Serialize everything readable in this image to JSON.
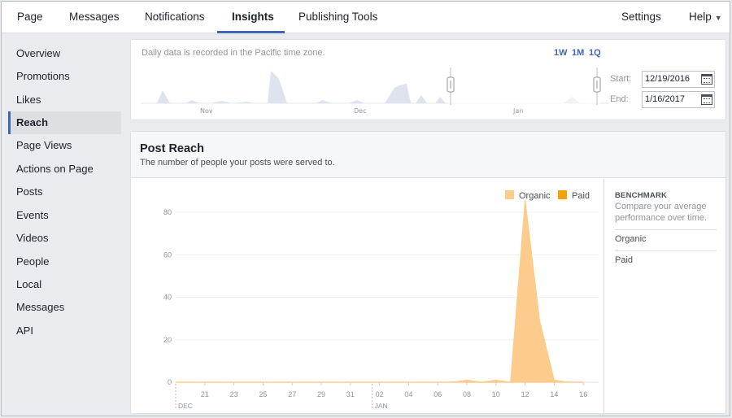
{
  "topnav": {
    "tabs": [
      {
        "label": "Page"
      },
      {
        "label": "Messages"
      },
      {
        "label": "Notifications"
      },
      {
        "label": "Insights",
        "active": true
      },
      {
        "label": "Publishing Tools"
      }
    ],
    "settings": "Settings",
    "help": "Help"
  },
  "sidebar": {
    "items": [
      "Overview",
      "Promotions",
      "Likes",
      "Reach",
      "Page Views",
      "Actions on Page",
      "Posts",
      "Events",
      "Videos",
      "People",
      "Local",
      "Messages",
      "API"
    ],
    "active": "Reach"
  },
  "timeline": {
    "note": "Daily data is recorded in the Pacific time zone.",
    "ranges": [
      "1W",
      "1M",
      "1Q"
    ],
    "ticks": [
      "Nov",
      "Dec",
      "Jan"
    ],
    "start_label": "Start:",
    "end_label": "End:",
    "start_value": "12/19/2016",
    "end_value": "1/16/2017"
  },
  "post_reach": {
    "title": "Post Reach",
    "subtitle": "The number of people your posts were served to."
  },
  "chart_data": {
    "type": "area",
    "legend": [
      "Organic",
      "Paid"
    ],
    "legend_position": "top-right",
    "colors": {
      "organic": "#fdcb8b",
      "paid": "#f2a20a"
    },
    "y_ticks": [
      "0",
      "20",
      "40",
      "60",
      "80"
    ],
    "ylim": [
      0,
      90
    ],
    "x_tick_labels": [
      "21",
      "23",
      "25",
      "27",
      "29",
      "31",
      "02",
      "04",
      "06",
      "08",
      "10",
      "12",
      "14",
      "16"
    ],
    "month_labels": [
      "DEC",
      "JAN"
    ],
    "series": [
      {
        "name": "Organic",
        "points": [
          [
            "2016-12-19",
            0
          ],
          [
            "2016-12-20",
            0
          ],
          [
            "2016-12-21",
            0
          ],
          [
            "2016-12-22",
            0
          ],
          [
            "2016-12-23",
            0
          ],
          [
            "2016-12-24",
            0
          ],
          [
            "2016-12-25",
            0
          ],
          [
            "2016-12-26",
            0
          ],
          [
            "2016-12-27",
            0
          ],
          [
            "2016-12-28",
            0
          ],
          [
            "2016-12-29",
            0
          ],
          [
            "2016-12-30",
            0
          ],
          [
            "2016-12-31",
            0
          ],
          [
            "2017-01-01",
            0
          ],
          [
            "2017-01-02",
            0
          ],
          [
            "2017-01-03",
            0
          ],
          [
            "2017-01-04",
            0
          ],
          [
            "2017-01-05",
            0
          ],
          [
            "2017-01-06",
            0
          ],
          [
            "2017-01-07",
            0
          ],
          [
            "2017-01-08",
            1
          ],
          [
            "2017-01-09",
            0
          ],
          [
            "2017-01-10",
            1
          ],
          [
            "2017-01-11",
            0
          ],
          [
            "2017-01-12",
            86
          ],
          [
            "2017-01-13",
            29
          ],
          [
            "2017-01-14",
            1
          ],
          [
            "2017-01-15",
            0
          ],
          [
            "2017-01-16",
            0
          ]
        ]
      },
      {
        "name": "Paid",
        "points": []
      }
    ],
    "benchmark": {
      "title": "BENCHMARK",
      "description": "Compare your average performance over time.",
      "rows": [
        "Organic",
        "Paid"
      ]
    }
  }
}
